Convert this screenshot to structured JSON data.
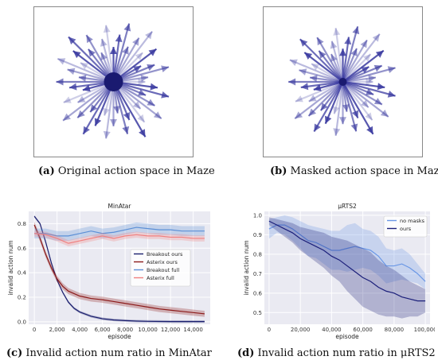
{
  "captions": {
    "a": {
      "label": "(a)",
      "text": "Original action space in Maze"
    },
    "b": {
      "label": "(b)",
      "text": "Masked action space in Maze"
    },
    "c": {
      "label": "(c)",
      "text": "Invalid action num ratio in MinAtar"
    },
    "d": {
      "label": "(d)",
      "text": "Invalid action num ratio in μRTS2"
    }
  },
  "colors": {
    "breakout_ours": "#1b1f6e",
    "asterix_ours": "#8b1a1a",
    "breakout_full": "#5b8fd6",
    "asterix_full": "#f08080",
    "no_masks": "#6a97e6",
    "ours": "#1b1f7a",
    "star": "#3a3aa0",
    "plot_bg": "#eaeaf2"
  },
  "chart_data": [
    {
      "id": "maze_original",
      "type": "other",
      "description_visible": "radial arrow star",
      "arrow_count": 48
    },
    {
      "id": "maze_masked",
      "type": "other",
      "arrow_count": 48
    },
    {
      "id": "minatar",
      "type": "line",
      "title": "MinAtar",
      "xlabel": "episode",
      "ylabel": "invalid action num",
      "xlim": [
        -500,
        15500
      ],
      "ylim": [
        -0.02,
        0.9
      ],
      "xticks": [
        0,
        2000,
        4000,
        6000,
        8000,
        10000,
        12000,
        14000
      ],
      "xtick_labels": [
        "0",
        "2,000",
        "4,000",
        "6,000",
        "8,000",
        "10,000",
        "12,000",
        "14,000"
      ],
      "yticks": [
        0.0,
        0.2,
        0.4,
        0.6,
        0.8
      ],
      "ytick_labels": [
        "0.0",
        "0.2",
        "0.4",
        "0.6",
        "0.8"
      ],
      "grid": true,
      "legend_position": "center-right",
      "series": [
        {
          "name": "Breakout ours",
          "color_key": "breakout_ours",
          "x": [
            0,
            500,
            1000,
            1500,
            2000,
            2500,
            3000,
            3500,
            4000,
            5000,
            6000,
            7000,
            8000,
            9000,
            10000,
            12000,
            14000,
            15000
          ],
          "y": [
            0.86,
            0.8,
            0.65,
            0.48,
            0.34,
            0.24,
            0.16,
            0.11,
            0.08,
            0.045,
            0.025,
            0.015,
            0.01,
            0.006,
            0.004,
            0.002,
            0.002,
            0.002
          ],
          "band": 0.01
        },
        {
          "name": "Asterix ours",
          "color_key": "asterix_ours",
          "x": [
            0,
            500,
            1000,
            1500,
            2000,
            2500,
            3000,
            3500,
            4000,
            5000,
            6000,
            7000,
            8000,
            9000,
            10000,
            11000,
            12000,
            13000,
            14000,
            15000
          ],
          "y": [
            0.79,
            0.68,
            0.55,
            0.44,
            0.35,
            0.29,
            0.25,
            0.23,
            0.21,
            0.19,
            0.18,
            0.165,
            0.15,
            0.135,
            0.12,
            0.105,
            0.095,
            0.085,
            0.075,
            0.065
          ],
          "band": 0.025
        },
        {
          "name": "Breakout full",
          "color_key": "breakout_full",
          "x": [
            0,
            1000,
            2000,
            3000,
            4000,
            5000,
            6000,
            7000,
            8000,
            9000,
            10000,
            11000,
            12000,
            13000,
            14000,
            15000
          ],
          "y": [
            0.72,
            0.72,
            0.7,
            0.7,
            0.72,
            0.74,
            0.72,
            0.73,
            0.75,
            0.77,
            0.76,
            0.75,
            0.75,
            0.74,
            0.74,
            0.74
          ],
          "band": 0.04
        },
        {
          "name": "Asterix full",
          "color_key": "asterix_full",
          "x": [
            0,
            1000,
            2000,
            3000,
            4000,
            5000,
            6000,
            7000,
            8000,
            9000,
            10000,
            11000,
            12000,
            13000,
            14000,
            15000
          ],
          "y": [
            0.72,
            0.71,
            0.68,
            0.64,
            0.66,
            0.68,
            0.7,
            0.68,
            0.7,
            0.71,
            0.7,
            0.7,
            0.69,
            0.69,
            0.68,
            0.68
          ],
          "band": 0.025
        }
      ]
    },
    {
      "id": "microrts",
      "type": "line",
      "title": "μRTS2",
      "xlabel": "episode",
      "ylabel": "invalid action num",
      "xlim": [
        -3000,
        103000
      ],
      "ylim": [
        0.44,
        1.02
      ],
      "xticks": [
        0,
        20000,
        40000,
        60000,
        80000,
        100000
      ],
      "xtick_labels": [
        "0",
        "20,000",
        "40,000",
        "60,000",
        "80,000",
        "100,000"
      ],
      "yticks": [
        0.5,
        0.6,
        0.7,
        0.8,
        0.9,
        1.0
      ],
      "ytick_labels": [
        "0.5",
        "0.6",
        "0.7",
        "0.8",
        "0.9",
        "1.0"
      ],
      "grid": true,
      "legend_position": "top-right",
      "series": [
        {
          "name": "no masks",
          "color_key": "no_masks",
          "x": [
            0,
            5000,
            10000,
            15000,
            20000,
            25000,
            30000,
            35000,
            40000,
            45000,
            50000,
            55000,
            60000,
            65000,
            70000,
            75000,
            80000,
            85000,
            90000,
            95000,
            100000
          ],
          "y": [
            0.93,
            0.95,
            0.95,
            0.93,
            0.9,
            0.87,
            0.86,
            0.84,
            0.82,
            0.82,
            0.83,
            0.84,
            0.83,
            0.82,
            0.79,
            0.74,
            0.74,
            0.75,
            0.73,
            0.7,
            0.66
          ],
          "band": [
            0.05,
            0.04,
            0.05,
            0.06,
            0.07,
            0.08,
            0.08,
            0.09,
            0.1,
            0.1,
            0.12,
            0.12,
            0.1,
            0.1,
            0.1,
            0.09,
            0.08,
            0.08,
            0.07,
            0.05,
            0.04
          ]
        },
        {
          "name": "ours",
          "color_key": "ours",
          "x": [
            0,
            5000,
            10000,
            15000,
            20000,
            25000,
            30000,
            35000,
            40000,
            45000,
            50000,
            55000,
            60000,
            65000,
            70000,
            75000,
            80000,
            85000,
            90000,
            95000,
            100000
          ],
          "y": [
            0.97,
            0.95,
            0.93,
            0.91,
            0.88,
            0.86,
            0.84,
            0.82,
            0.79,
            0.77,
            0.74,
            0.71,
            0.68,
            0.66,
            0.63,
            0.61,
            0.6,
            0.58,
            0.57,
            0.56,
            0.56
          ],
          "band": [
            0.02,
            0.03,
            0.04,
            0.05,
            0.06,
            0.07,
            0.08,
            0.09,
            0.1,
            0.11,
            0.13,
            0.14,
            0.15,
            0.15,
            0.14,
            0.13,
            0.12,
            0.11,
            0.09,
            0.08,
            0.06
          ]
        }
      ]
    }
  ]
}
